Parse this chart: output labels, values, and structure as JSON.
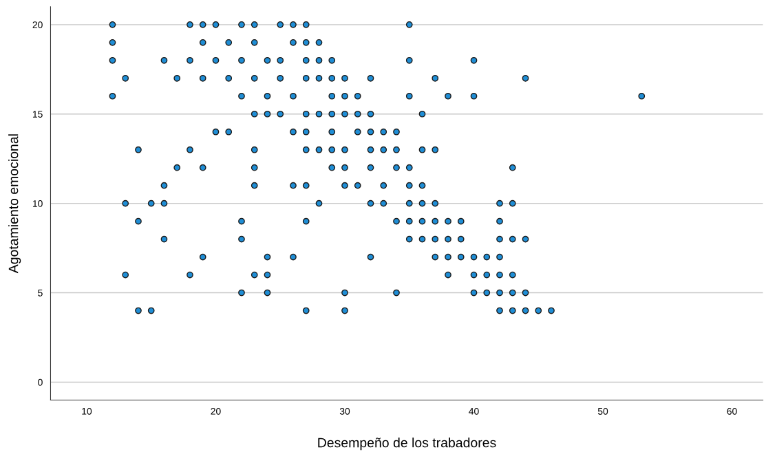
{
  "chart_data": {
    "type": "scatter",
    "xlabel": "Desempeño de los trabadores",
    "ylabel": "Agotamiento emocional",
    "series": [
      {
        "color": "#1f8ed6",
        "x": [
          12,
          18,
          19,
          20,
          22,
          23,
          25,
          26,
          27,
          35,
          12,
          19,
          21,
          23,
          26,
          27,
          28,
          12,
          16,
          18,
          20,
          22,
          24,
          25,
          27,
          28,
          29,
          35,
          40,
          13,
          17,
          19,
          21,
          23,
          25,
          27,
          28,
          29,
          30,
          32,
          37,
          44,
          12,
          22,
          24,
          26,
          29,
          30,
          31,
          35,
          38,
          40,
          53,
          23,
          24,
          25,
          27,
          28,
          29,
          30,
          31,
          32,
          36,
          20,
          21,
          26,
          27,
          29,
          31,
          32,
          33,
          34,
          14,
          18,
          23,
          27,
          28,
          29,
          30,
          32,
          33,
          34,
          36,
          37,
          17,
          19,
          23,
          29,
          30,
          32,
          34,
          35,
          43,
          16,
          23,
          26,
          27,
          30,
          31,
          33,
          35,
          36,
          13,
          15,
          16,
          28,
          32,
          33,
          35,
          36,
          37,
          42,
          43,
          14,
          22,
          27,
          34,
          35,
          36,
          37,
          38,
          39,
          42,
          16,
          22,
          35,
          36,
          37,
          38,
          39,
          42,
          43,
          44,
          19,
          24,
          26,
          32,
          37,
          38,
          39,
          40,
          41,
          42,
          13,
          18,
          23,
          24,
          38,
          40,
          41,
          42,
          43,
          22,
          24,
          30,
          34,
          40,
          41,
          42,
          43,
          44,
          14,
          15,
          27,
          30,
          42,
          43,
          44,
          45,
          46
        ],
        "values": [
          20,
          20,
          20,
          20,
          20,
          20,
          20,
          20,
          20,
          20,
          19,
          19,
          19,
          19,
          19,
          19,
          19,
          18,
          18,
          18,
          18,
          18,
          18,
          18,
          18,
          18,
          18,
          18,
          18,
          17,
          17,
          17,
          17,
          17,
          17,
          17,
          17,
          17,
          17,
          17,
          17,
          17,
          16,
          16,
          16,
          16,
          16,
          16,
          16,
          16,
          16,
          16,
          16,
          15,
          15,
          15,
          15,
          15,
          15,
          15,
          15,
          15,
          15,
          14,
          14,
          14,
          14,
          14,
          14,
          14,
          14,
          14,
          13,
          13,
          13,
          13,
          13,
          13,
          13,
          13,
          13,
          13,
          13,
          13,
          12,
          12,
          12,
          12,
          12,
          12,
          12,
          12,
          12,
          11,
          11,
          11,
          11,
          11,
          11,
          11,
          11,
          11,
          10,
          10,
          10,
          10,
          10,
          10,
          10,
          10,
          10,
          10,
          10,
          9,
          9,
          9,
          9,
          9,
          9,
          9,
          9,
          9,
          9,
          8,
          8,
          8,
          8,
          8,
          8,
          8,
          8,
          8,
          8,
          7,
          7,
          7,
          7,
          7,
          7,
          7,
          7,
          7,
          7,
          6,
          6,
          6,
          6,
          6,
          6,
          6,
          6,
          6,
          5,
          5,
          5,
          5,
          5,
          5,
          5,
          5,
          5,
          4,
          4,
          4,
          4,
          4,
          4,
          4,
          4,
          4
        ]
      }
    ],
    "xlim": [
      7.2,
      62.4
    ],
    "ylim": [
      -1,
      21
    ],
    "xticks": [
      10,
      20,
      30,
      40,
      50,
      60
    ],
    "yticks": [
      0,
      5,
      10,
      15,
      20
    ],
    "grid": "y",
    "marker": "circle"
  }
}
